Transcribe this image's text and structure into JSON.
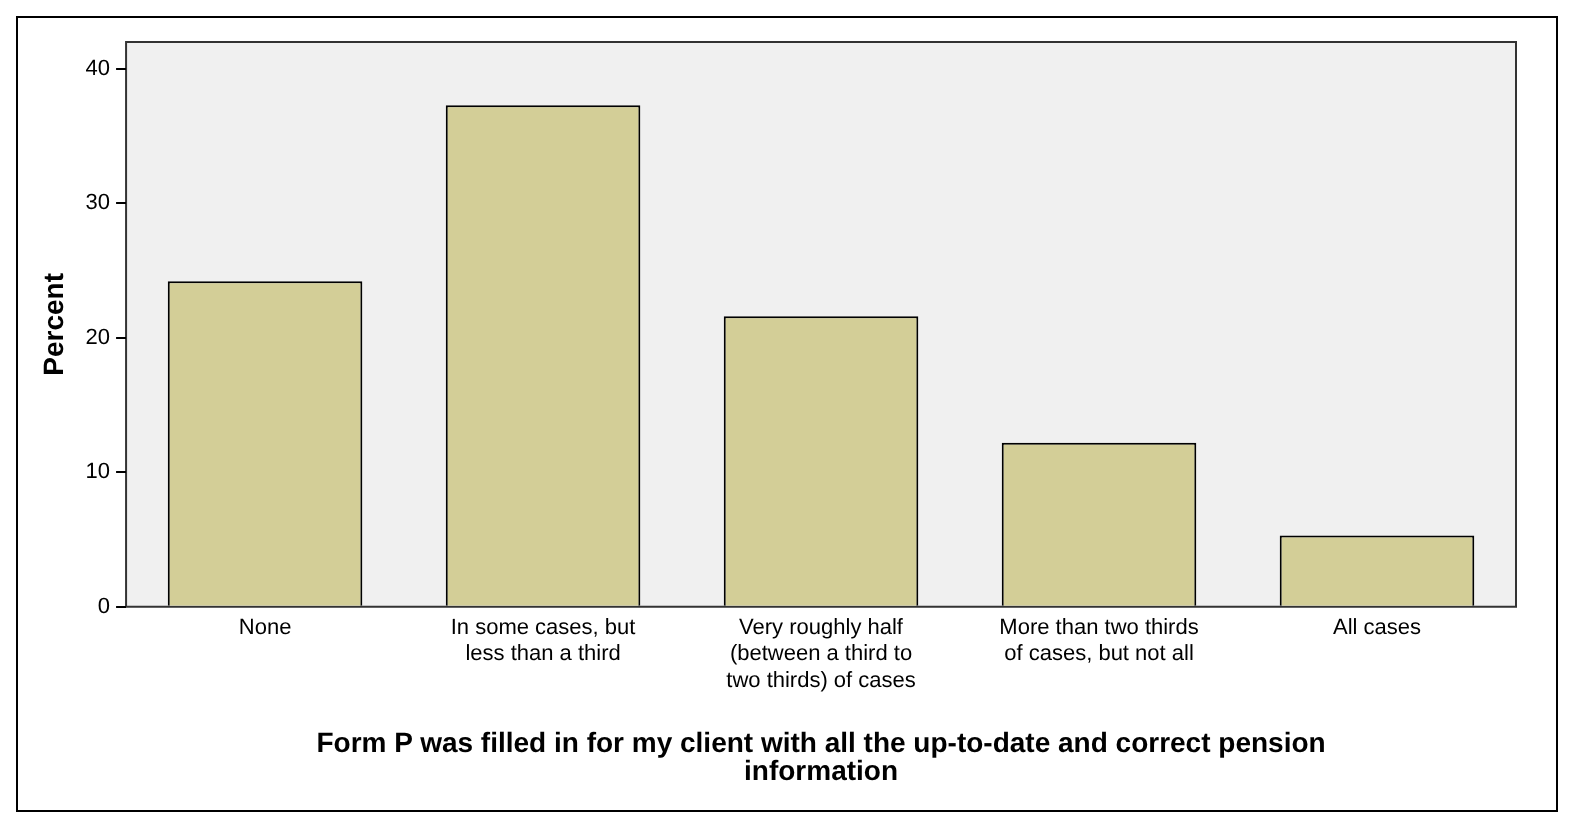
{
  "chart_data": {
    "type": "bar",
    "xlabel": "Form P was filled in for my client with all the up-to-date and correct pension information",
    "ylabel": "Percent",
    "categories": [
      "None",
      "In some cases, but less than a third",
      "Very roughly half (between a third to two thirds) of cases",
      "More than two thirds of cases, but not all",
      "All cases"
    ],
    "values": [
      24.2,
      37.3,
      21.6,
      12.2,
      5.3
    ],
    "color": "#d3ce97",
    "ylim": [
      0,
      42
    ],
    "yticks": [
      0,
      10,
      20,
      30,
      40
    ],
    "grid": false,
    "legend": false
  }
}
